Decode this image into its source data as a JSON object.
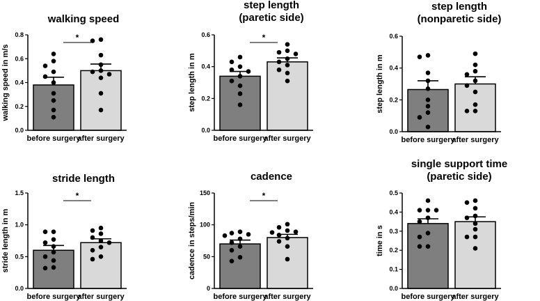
{
  "colors": {
    "before": "#7f7f7f",
    "after": "#d9d9d9",
    "axis": "#000000",
    "dot": "#000000"
  },
  "chart_data": [
    {
      "type": "bar",
      "title": [
        "walking speed"
      ],
      "ylabel": "walking speed in m/s",
      "categories": [
        "before surgery",
        "after surgery"
      ],
      "ylim": [
        0,
        0.8
      ],
      "yticks": [
        0,
        0.2,
        0.4,
        0.6,
        0.8
      ],
      "ytick_labels": [
        "0.0",
        "0.2",
        "0.4",
        "0.6",
        "0.8"
      ],
      "means": [
        0.38,
        0.5
      ],
      "sem": [
        0.065,
        0.055
      ],
      "points": [
        [
          0.64,
          0.58,
          0.54,
          0.49,
          0.45,
          0.4,
          0.31,
          0.25,
          0.17,
          0.11
        ],
        [
          0.76,
          0.75,
          0.63,
          0.55,
          0.5,
          0.49,
          0.47,
          0.44,
          0.31,
          0.17
        ]
      ],
      "significance": "*"
    },
    {
      "type": "bar",
      "title": [
        "step length",
        "(paretic side)"
      ],
      "ylabel": "step length in m",
      "categories": [
        "before surgery",
        "after surgery"
      ],
      "ylim": [
        0,
        0.6
      ],
      "yticks": [
        0,
        0.2,
        0.4,
        0.6
      ],
      "ytick_labels": [
        "0.0",
        "0.2",
        "0.4",
        "0.6"
      ],
      "means": [
        0.34,
        0.43
      ],
      "sem": [
        0.03,
        0.025
      ],
      "points": [
        [
          0.46,
          0.43,
          0.4,
          0.38,
          0.37,
          0.34,
          0.31,
          0.28,
          0.23,
          0.16
        ],
        [
          0.54,
          0.5,
          0.49,
          0.48,
          0.45,
          0.43,
          0.41,
          0.38,
          0.36,
          0.31
        ]
      ],
      "significance": "*"
    },
    {
      "type": "bar",
      "title": [
        "step length",
        "(nonparetic side)"
      ],
      "ylabel": "step length in m",
      "categories": [
        "before surgery",
        "after surgery"
      ],
      "ylim": [
        0,
        0.6
      ],
      "yticks": [
        0,
        0.2,
        0.4,
        0.6
      ],
      "ytick_labels": [
        "0.0",
        "0.2",
        "0.4",
        "0.6"
      ],
      "means": [
        0.265,
        0.3
      ],
      "sem": [
        0.055,
        0.045
      ],
      "points": [
        [
          0.48,
          0.47,
          0.37,
          0.32,
          0.27,
          0.2,
          0.16,
          0.12,
          0.09,
          0.03
        ],
        [
          0.49,
          0.42,
          0.38,
          0.36,
          0.32,
          0.29,
          0.25,
          0.17,
          0.13,
          0.13
        ]
      ],
      "significance": ""
    },
    {
      "type": "bar",
      "title": [
        "stride length"
      ],
      "ylabel": "stride length in m",
      "categories": [
        "before surgery",
        "after surgery"
      ],
      "ylim": [
        0,
        1.5
      ],
      "yticks": [
        0,
        0.5,
        1.0,
        1.5
      ],
      "ytick_labels": [
        "0.0",
        "0.5",
        "1.0",
        "1.5"
      ],
      "means": [
        0.6,
        0.72
      ],
      "sem": [
        0.075,
        0.06
      ],
      "points": [
        [
          0.89,
          0.89,
          0.77,
          0.72,
          0.66,
          0.57,
          0.5,
          0.44,
          0.33,
          0.32
        ],
        [
          0.95,
          0.91,
          0.86,
          0.8,
          0.75,
          0.72,
          0.65,
          0.6,
          0.5,
          0.46
        ]
      ],
      "significance": "*"
    },
    {
      "type": "bar",
      "title": [
        "cadence"
      ],
      "ylabel": "cadence in steps/min",
      "categories": [
        "before surgery",
        "after surgery"
      ],
      "ylim": [
        0,
        150
      ],
      "yticks": [
        0,
        50,
        100,
        150
      ],
      "ytick_labels": [
        "0",
        "50",
        "100",
        "150"
      ],
      "means": [
        70,
        80
      ],
      "sem": [
        6,
        5
      ],
      "points": [
        [
          89,
          87,
          85,
          83,
          78,
          72,
          66,
          60,
          49,
          43
        ],
        [
          101,
          96,
          91,
          89,
          88,
          84,
          79,
          74,
          66,
          46
        ]
      ],
      "significance": "*"
    },
    {
      "type": "bar",
      "title": [
        "single support time",
        "(paretic side)"
      ],
      "ylabel": "time in s",
      "categories": [
        "before surgery",
        "after surgery"
      ],
      "ylim": [
        0,
        0.5
      ],
      "yticks": [
        0,
        0.1,
        0.2,
        0.3,
        0.4,
        0.5
      ],
      "ytick_labels": [
        "0.0",
        "0.1",
        "0.2",
        "0.3",
        "0.4",
        "0.5"
      ],
      "means": [
        0.34,
        0.35
      ],
      "sem": [
        0.025,
        0.025
      ],
      "points": [
        [
          0.46,
          0.41,
          0.41,
          0.41,
          0.37,
          0.35,
          0.29,
          0.27,
          0.22,
          0.22
        ],
        [
          0.46,
          0.45,
          0.42,
          0.38,
          0.37,
          0.34,
          0.31,
          0.27,
          0.27,
          0.21
        ]
      ],
      "significance": ""
    }
  ]
}
